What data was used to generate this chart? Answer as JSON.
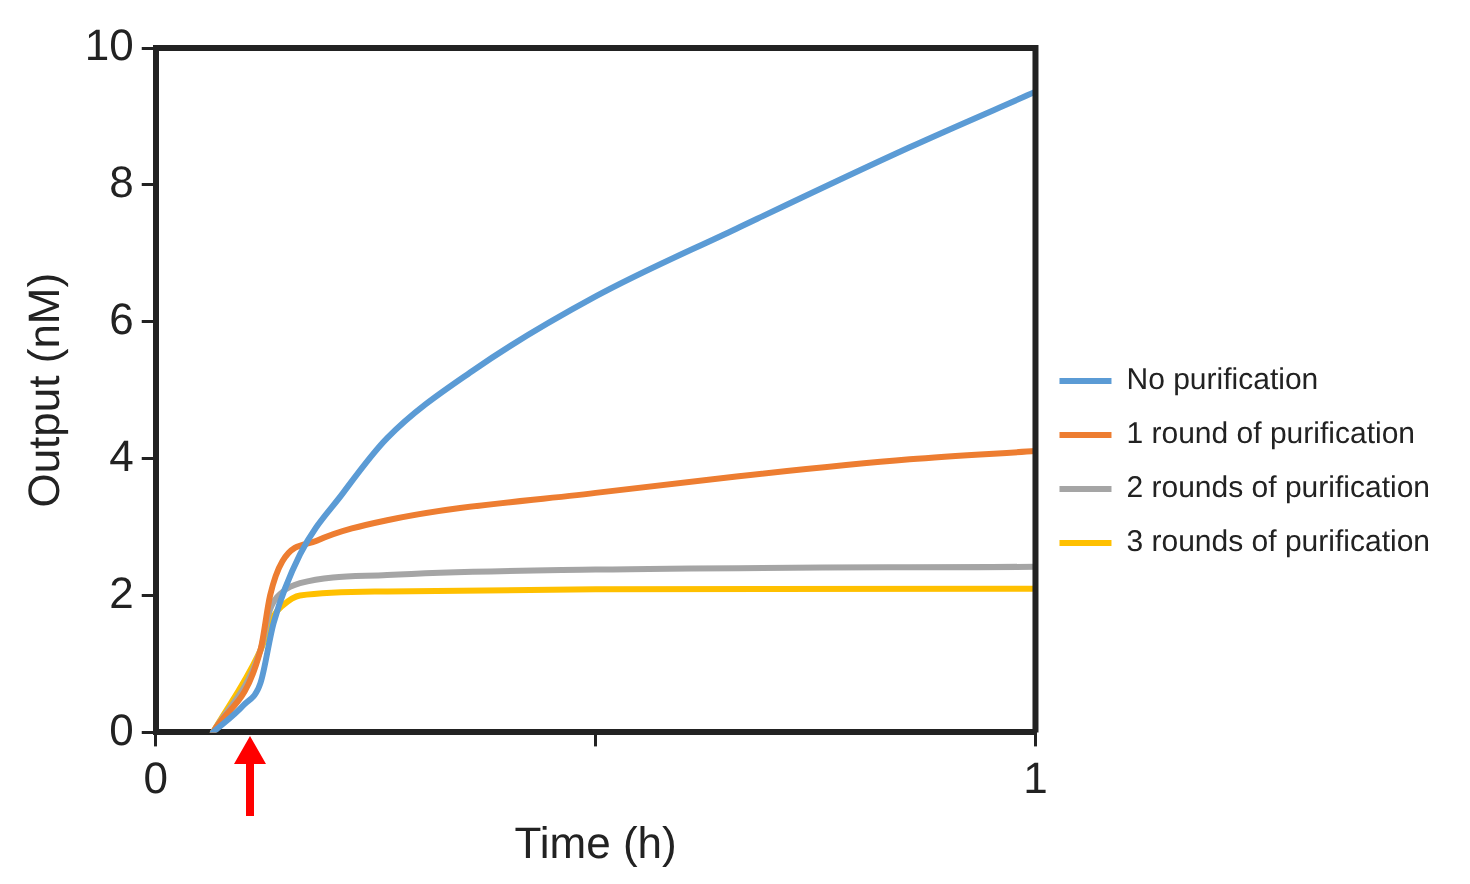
{
  "chart_data": {
    "type": "line",
    "xlabel": "Time (h)",
    "ylabel": "Output (nM)",
    "xlim": [
      0,
      1
    ],
    "xticks": [
      0,
      {
        "value": 0.5,
        "label": null
      },
      1
    ],
    "ylim": [
      0,
      10
    ],
    "yticks": [
      0,
      2,
      4,
      6,
      8,
      10
    ],
    "grid": false,
    "legend": "right",
    "marker": "none",
    "line_style": "solid",
    "series": [
      {
        "name": "No purification",
        "color": "#5b9bd5",
        "x": [
          0.065,
          0.1,
          0.119,
          0.134,
          0.164,
          0.213,
          0.263,
          0.362,
          0.5,
          0.66,
          0.857,
          1.0
        ],
        "values": [
          0,
          0.4,
          0.72,
          1.6,
          2.6,
          3.5,
          4.3,
          5.3,
          6.37,
          7.36,
          8.55,
          9.36
        ]
      },
      {
        "name": "1 round of purification",
        "color": "#ed7d31",
        "x": [
          0.065,
          0.119,
          0.13,
          0.144,
          0.183,
          0.263,
          0.5,
          0.66,
          0.857,
          1.0
        ],
        "values": [
          0,
          1.2,
          2.0,
          2.5,
          2.8,
          3.1,
          3.5,
          3.74,
          3.99,
          4.11
        ]
      },
      {
        "name": "2 rounds of purification",
        "color": "#a5a5a5",
        "x": [
          0.065,
          0.119,
          0.13,
          0.144,
          0.164,
          0.263,
          0.5,
          1.0
        ],
        "values": [
          0,
          1.2,
          1.8,
          2.05,
          2.18,
          2.3,
          2.38,
          2.42
        ]
      },
      {
        "name": "3 rounds of purification",
        "color": "#ffc000",
        "x": [
          0.065,
          0.119,
          0.134,
          0.144,
          0.164,
          0.263,
          0.5,
          1.0
        ],
        "values": [
          0,
          1.2,
          1.7,
          1.85,
          2.0,
          2.06,
          2.09,
          2.1
        ]
      }
    ]
  }
}
